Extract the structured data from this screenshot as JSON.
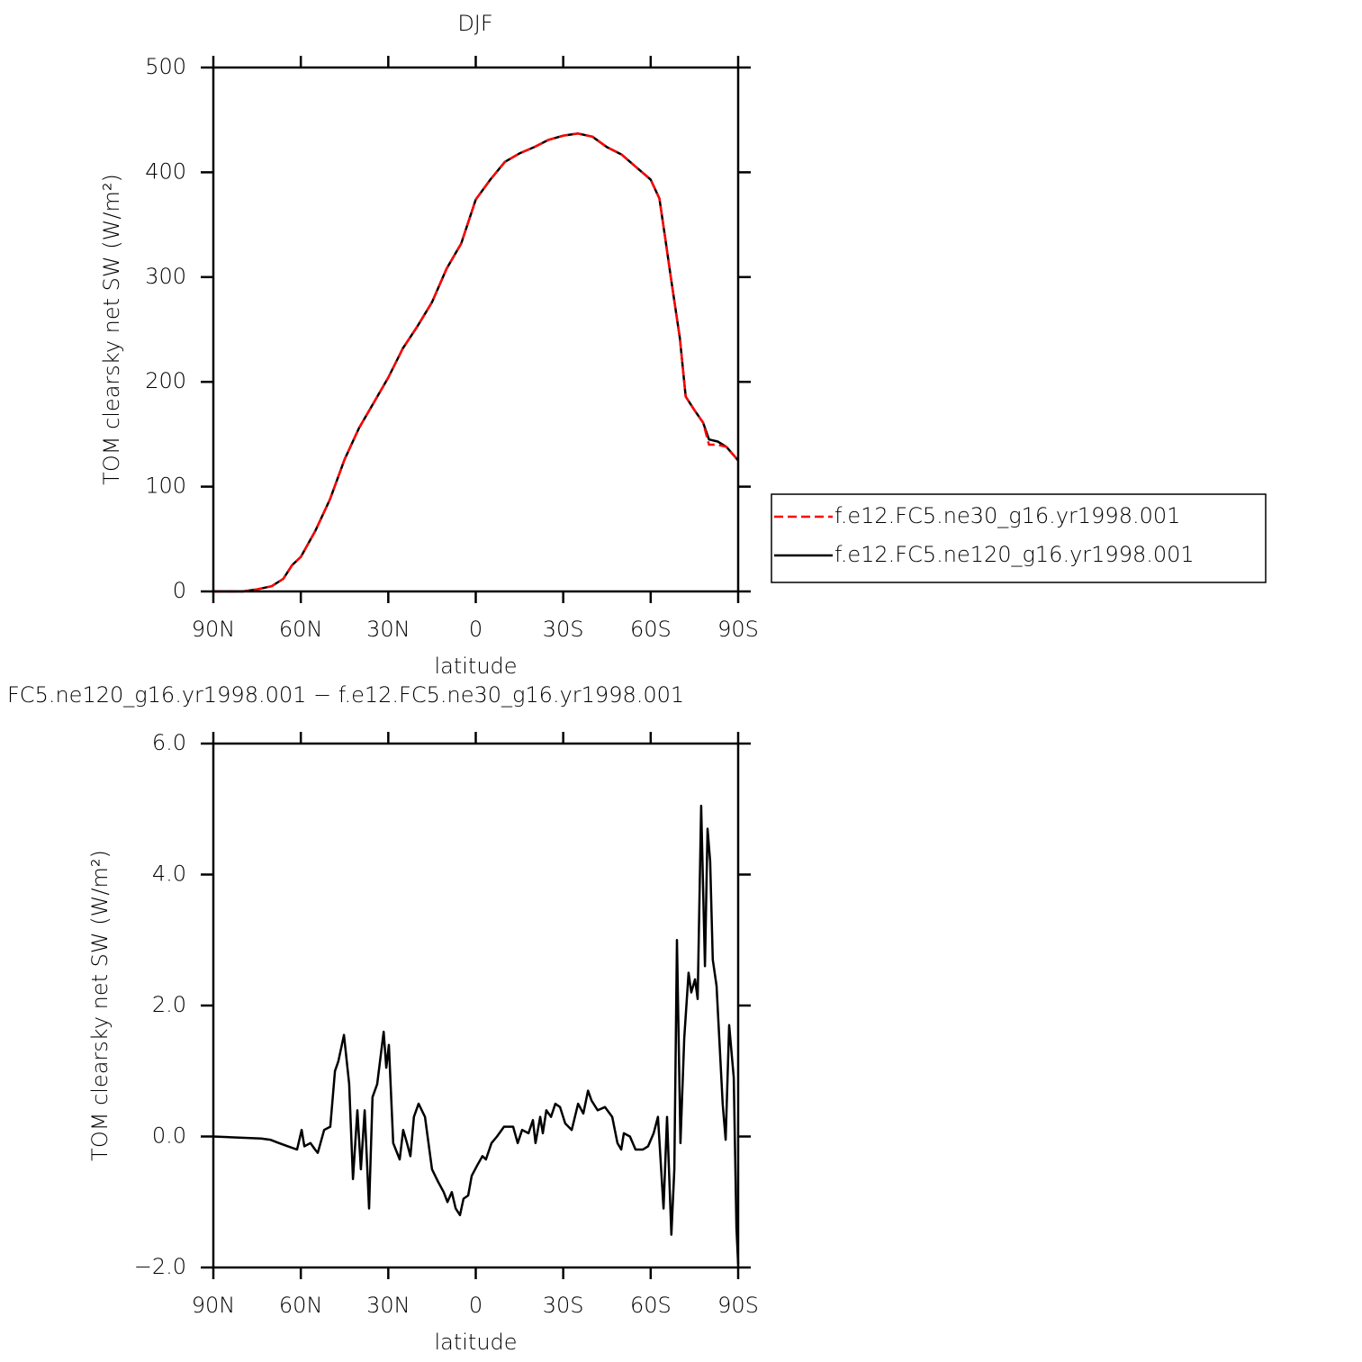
{
  "chart_data": [
    {
      "type": "line",
      "title": "DJF",
      "xlabel": "latitude",
      "ylabel": "TOM clearsky net SW (W/m²)",
      "x": [
        90,
        80,
        75,
        70,
        66,
        63,
        60,
        55,
        50,
        45,
        40,
        35,
        30,
        25,
        20,
        15,
        10,
        5,
        0,
        -5,
        -10,
        -15,
        -20,
        -25,
        -30,
        -35,
        -40,
        -45,
        -50,
        -55,
        -60,
        -63,
        -65,
        -67,
        -70,
        -72,
        -75,
        -78,
        -80,
        -83,
        -86,
        -90
      ],
      "series": [
        {
          "name": "f.e12.FC5.ne30_g16.yr1998.001",
          "color": "#ff0000",
          "dash": "dashed",
          "values": [
            0,
            0,
            2,
            5,
            12,
            25,
            33,
            58,
            88,
            126,
            156,
            180,
            204,
            232,
            253,
            276,
            308,
            332,
            374,
            393,
            410,
            418,
            424,
            431,
            435,
            437,
            434,
            424,
            417,
            405,
            393,
            375,
            337,
            298,
            242,
            186,
            173,
            161,
            140,
            140,
            138,
            125
          ]
        },
        {
          "name": "f.e12.FC5.ne120_g16.yr1998.001",
          "color": "#000000",
          "dash": "solid",
          "values": [
            0,
            0,
            2,
            5,
            12,
            25,
            33,
            58,
            88,
            126,
            156,
            180,
            204,
            232,
            253,
            276,
            308,
            332,
            374,
            393,
            410,
            418,
            424,
            431,
            435,
            437,
            434,
            424,
            417,
            405,
            393,
            375,
            337,
            298,
            242,
            186,
            173,
            161,
            145,
            143,
            138,
            125
          ]
        }
      ],
      "xlim": [
        90,
        -90
      ],
      "xticks": [
        {
          "value": 90,
          "label": "90N"
        },
        {
          "value": 60,
          "label": "60N"
        },
        {
          "value": 30,
          "label": "30N"
        },
        0,
        {
          "value": -30,
          "label": "30S"
        },
        {
          "value": -60,
          "label": "60S"
        },
        {
          "value": -90,
          "label": "90S"
        }
      ],
      "ylim": [
        0,
        500
      ],
      "yticks": [
        0,
        100,
        200,
        300,
        400,
        500
      ],
      "legend": "right"
    },
    {
      "type": "line",
      "title": "FC5.ne120_g16.yr1998.001 − f.e12.FC5.ne30_g16.yr1998.001",
      "xlabel": "latitude",
      "ylabel": "TOM clearsky net SW (W/m²)",
      "x": [
        90,
        73.6,
        70.5,
        67.5,
        64.4,
        61.3,
        59.7,
        58.8,
        56.7,
        55.1,
        54.2,
        52,
        49.9,
        48.3,
        47.1,
        45.2,
        43.4,
        42.1,
        40.6,
        39.4,
        38.1,
        36.6,
        35.4,
        33.8,
        31.6,
        30.7,
        29.8,
        28.3,
        26.1,
        24.9,
        23.6,
        22.4,
        21.2,
        19.6,
        17.4,
        15,
        12.8,
        11,
        9.7,
        8.2,
        6.9,
        5.4,
        4.2,
        2.6,
        1.4,
        -0.4,
        -2.3,
        -3.5,
        -5.4,
        -7.3,
        -9.7,
        -12.8,
        -14.4,
        -15.9,
        -18.1,
        -19.6,
        -20.5,
        -22.1,
        -23,
        -24.2,
        -25.8,
        -27.3,
        -28.9,
        -30.7,
        -32.9,
        -35.1,
        -36.9,
        -38.5,
        -39.7,
        -41.8,
        -44.3,
        -46.8,
        -48.6,
        -49.9,
        -50.8,
        -52.9,
        -54.8,
        -57.3,
        -59.1,
        -61,
        -62.5,
        -64.4,
        -65.6,
        -67.1,
        -68.1,
        -69,
        -70.2,
        -71.5,
        -73,
        -73.9,
        -75.2,
        -76.1,
        -77.3,
        -78.6,
        -79.5,
        -80.4,
        -81.3,
        -82.6,
        -84.7,
        -85.7,
        -86.9,
        -88.5,
        -89.4,
        -90
      ],
      "color": "#000000",
      "values": [
        0,
        -0.03,
        -0.05,
        -0.1,
        -0.15,
        -0.2,
        0.1,
        -0.15,
        -0.1,
        -0.2,
        -0.25,
        0.1,
        0.15,
        1.0,
        1.15,
        1.55,
        0.8,
        -0.65,
        0.4,
        -0.5,
        0.4,
        -1.1,
        0.6,
        0.8,
        1.6,
        1.05,
        1.4,
        -0.1,
        -0.35,
        0.1,
        -0.1,
        -0.3,
        0.3,
        0.5,
        0.3,
        -0.5,
        -0.7,
        -0.85,
        -1.0,
        -0.85,
        -1.1,
        -1.2,
        -0.95,
        -0.9,
        -0.6,
        -0.45,
        -0.3,
        -0.35,
        -0.1,
        0,
        0.15,
        0.15,
        -0.1,
        0.1,
        0.05,
        0.25,
        -0.1,
        0.3,
        0.05,
        0.4,
        0.3,
        0.5,
        0.45,
        0.2,
        0.1,
        0.5,
        0.35,
        0.7,
        0.55,
        0.4,
        0.45,
        0.3,
        -0.1,
        -0.2,
        0.05,
        0,
        -0.2,
        -0.2,
        -0.15,
        0.05,
        0.3,
        -1.1,
        0.3,
        -1.5,
        -0.5,
        3.0,
        -0.1,
        1.5,
        2.5,
        2.2,
        2.4,
        2.1,
        5.05,
        2.6,
        4.7,
        4.2,
        2.7,
        2.3,
        0.5,
        -0.05,
        1.7,
        0.9,
        -1.4,
        -1.95
      ],
      "xlim": [
        90,
        -90
      ],
      "xticks": [
        {
          "value": 90,
          "label": "90N"
        },
        {
          "value": 60,
          "label": "60N"
        },
        {
          "value": 30,
          "label": "30N"
        },
        0,
        {
          "value": -30,
          "label": "30S"
        },
        {
          "value": -60,
          "label": "60S"
        },
        {
          "value": -90,
          "label": "90S"
        }
      ],
      "ylim": [
        -2,
        6
      ],
      "yticks": [
        {
          "value": -2,
          "label": "−2.0"
        },
        {
          "value": 0,
          "label": "0.0"
        },
        {
          "value": 2,
          "label": "2.0"
        },
        {
          "value": 4,
          "label": "4.0"
        },
        {
          "value": 6,
          "label": "6.0"
        }
      ]
    }
  ]
}
